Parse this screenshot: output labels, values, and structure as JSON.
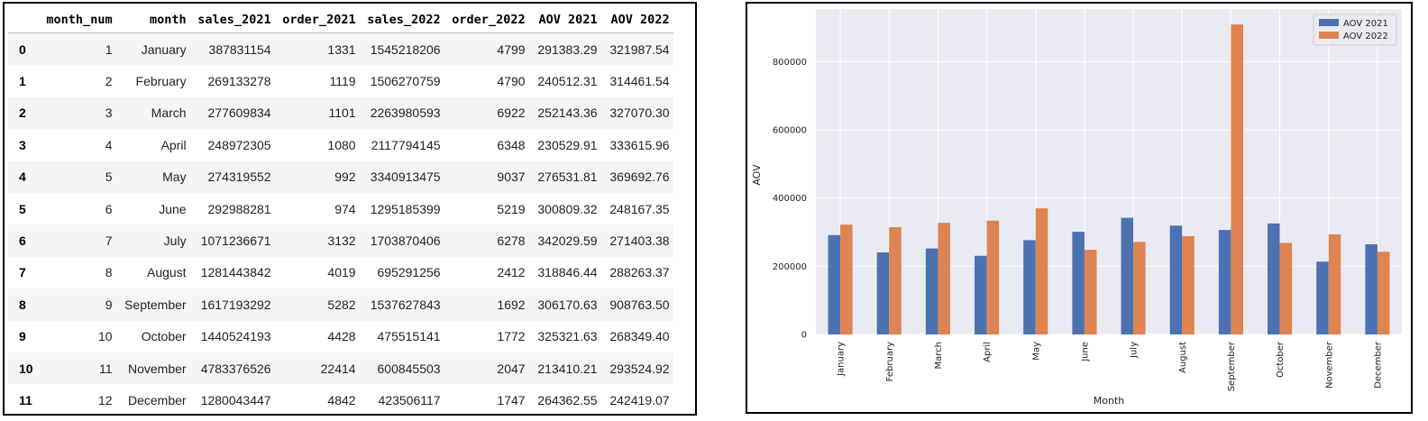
{
  "table": {
    "columns": [
      "",
      "month_num",
      "month",
      "sales_2021",
      "order_2021",
      "sales_2022",
      "order_2022",
      "AOV 2021",
      "AOV 2022"
    ],
    "rows": [
      [
        "0",
        "1",
        "January",
        "387831154",
        "1331",
        "1545218206",
        "4799",
        "291383.29",
        "321987.54"
      ],
      [
        "1",
        "2",
        "February",
        "269133278",
        "1119",
        "1506270759",
        "4790",
        "240512.31",
        "314461.54"
      ],
      [
        "2",
        "3",
        "March",
        "277609834",
        "1101",
        "2263980593",
        "6922",
        "252143.36",
        "327070.30"
      ],
      [
        "3",
        "4",
        "April",
        "248972305",
        "1080",
        "2117794145",
        "6348",
        "230529.91",
        "333615.96"
      ],
      [
        "4",
        "5",
        "May",
        "274319552",
        "992",
        "3340913475",
        "9037",
        "276531.81",
        "369692.76"
      ],
      [
        "5",
        "6",
        "June",
        "292988281",
        "974",
        "1295185399",
        "5219",
        "300809.32",
        "248167.35"
      ],
      [
        "6",
        "7",
        "July",
        "1071236671",
        "3132",
        "1703870406",
        "6278",
        "342029.59",
        "271403.38"
      ],
      [
        "7",
        "8",
        "August",
        "1281443842",
        "4019",
        "695291256",
        "2412",
        "318846.44",
        "288263.37"
      ],
      [
        "8",
        "9",
        "September",
        "1617193292",
        "5282",
        "1537627843",
        "1692",
        "306170.63",
        "908763.50"
      ],
      [
        "9",
        "10",
        "October",
        "1440524193",
        "4428",
        "475515141",
        "1772",
        "325321.63",
        "268349.40"
      ],
      [
        "10",
        "11",
        "November",
        "4783376526",
        "22414",
        "600845503",
        "2047",
        "213410.21",
        "293524.92"
      ],
      [
        "11",
        "12",
        "December",
        "1280043447",
        "4842",
        "423506117",
        "1747",
        "264362.55",
        "242419.07"
      ]
    ]
  },
  "chart_data": {
    "type": "bar",
    "categories": [
      "January",
      "February",
      "March",
      "April",
      "May",
      "June",
      "July",
      "August",
      "September",
      "October",
      "November",
      "December"
    ],
    "series": [
      {
        "name": "AOV 2021",
        "color": "#4c72b0",
        "values": [
          291383.29,
          240512.31,
          252143.36,
          230529.91,
          276531.81,
          300809.32,
          342029.59,
          318846.44,
          306170.63,
          325321.63,
          213410.21,
          264362.55
        ]
      },
      {
        "name": "AOV 2022",
        "color": "#dd8452",
        "values": [
          321987.54,
          314461.54,
          327070.3,
          333615.96,
          369692.76,
          248167.35,
          271403.38,
          288263.37,
          908763.5,
          268349.4,
          293524.92,
          242419.07
        ]
      }
    ],
    "xlabel": "Month",
    "ylabel": "AOV",
    "ylim": [
      0,
      954000
    ],
    "yticks": [
      0,
      200000,
      400000,
      600000,
      800000
    ],
    "ytick_labels": [
      "0",
      "200000",
      "400000",
      "600000",
      "800000"
    ],
    "grid": true,
    "legend_position": "top-right",
    "background": "#eaeaf2"
  }
}
